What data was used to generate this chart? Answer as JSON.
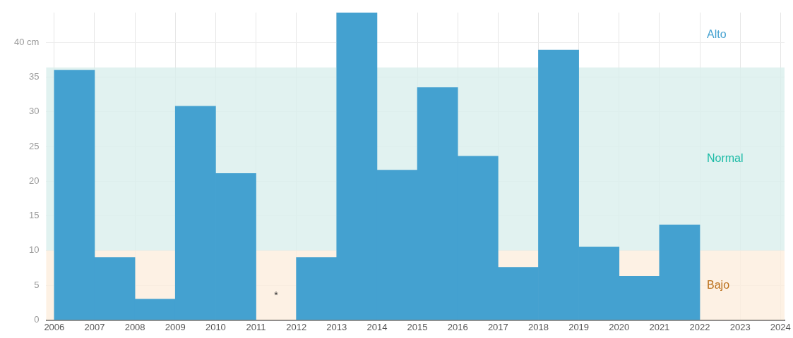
{
  "chart_data": {
    "type": "histogram",
    "bins": [
      2006,
      2007,
      2008,
      2009,
      2010,
      2011,
      2012,
      2013,
      2014,
      2015,
      2016,
      2017,
      2018,
      2019,
      2020,
      2021,
      2022
    ],
    "values": [
      36.0,
      9.0,
      3.0,
      30.8,
      21.1,
      null,
      9.0,
      44.3,
      21.6,
      33.5,
      23.6,
      7.6,
      38.9,
      10.5,
      6.3,
      13.7
    ],
    "color": "#44a1d0",
    "xlim": [
      2005.8,
      2024.1
    ],
    "xticks": [
      2006,
      2007,
      2008,
      2009,
      2010,
      2011,
      2012,
      2013,
      2014,
      2015,
      2016,
      2017,
      2018,
      2019,
      2020,
      2021,
      2022,
      2023,
      2024
    ],
    "ylim": [
      0,
      44.3
    ],
    "yticks": [
      0,
      5,
      10,
      15,
      20,
      25,
      30,
      35,
      {
        "value": 40,
        "label": "40 cm"
      }
    ],
    "grid": true,
    "bands": [
      {
        "axis": "y",
        "from": 10,
        "to": 36.4,
        "label": "Normal",
        "color": "#d9efec"
      },
      {
        "axis": "y",
        "from": 0,
        "to": 10,
        "label": "Bajo",
        "color": "#fdeedd"
      }
    ],
    "annotations": [
      "Alto",
      "*"
    ]
  }
}
